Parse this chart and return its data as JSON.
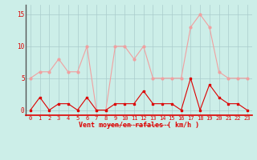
{
  "x": [
    0,
    1,
    2,
    3,
    4,
    5,
    6,
    7,
    8,
    9,
    10,
    11,
    12,
    13,
    14,
    15,
    16,
    17,
    18,
    19,
    20,
    21,
    22,
    23
  ],
  "vent_moyen": [
    0,
    2,
    0,
    1,
    1,
    0,
    2,
    0,
    0,
    1,
    1,
    1,
    3,
    1,
    1,
    1,
    0,
    5,
    0,
    4,
    2,
    1,
    1,
    0
  ],
  "rafales": [
    5,
    6,
    6,
    8,
    6,
    6,
    10,
    0,
    0,
    10,
    10,
    8,
    10,
    5,
    5,
    5,
    5,
    13,
    15,
    13,
    6,
    5,
    5,
    5
  ],
  "color_moyen": "#dd0000",
  "color_rafales": "#f0a0a0",
  "bg_color": "#cceee8",
  "grid_color": "#aacccc",
  "xlabel": "Vent moyen/en rafales ( km/h )",
  "yticks": [
    0,
    5,
    10,
    15
  ],
  "xticks": [
    0,
    1,
    2,
    3,
    4,
    5,
    6,
    7,
    8,
    9,
    10,
    11,
    12,
    13,
    14,
    15,
    16,
    17,
    18,
    19,
    20,
    21,
    22,
    23
  ],
  "ylim": [
    -0.8,
    16.5
  ],
  "xlim": [
    -0.5,
    23.5
  ]
}
